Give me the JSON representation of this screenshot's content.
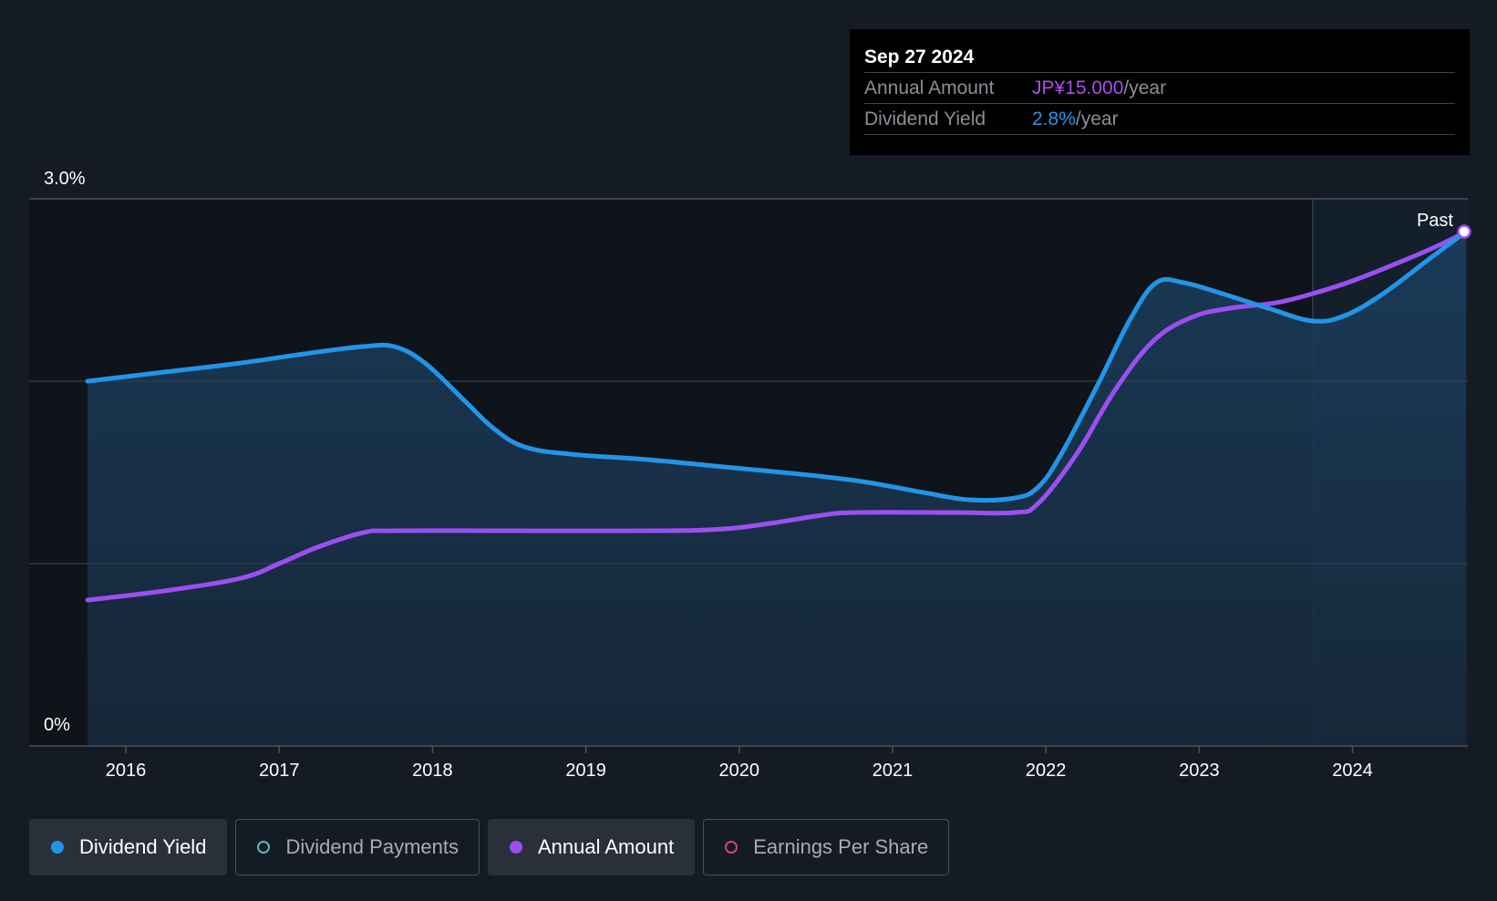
{
  "chart_data": {
    "type": "line",
    "y_axis": {
      "top_label": "3.0%",
      "bottom_label": "0%",
      "ylim": [
        0,
        3.0
      ]
    },
    "x_ticks": [
      "2016",
      "2017",
      "2018",
      "2019",
      "2020",
      "2021",
      "2022",
      "2023",
      "2024"
    ],
    "xlim": [
      2015.75,
      2024.74
    ],
    "forecast_label": "Past",
    "forecast_start": 2023.74,
    "series": [
      {
        "name": "Dividend Yield",
        "color": "#2394e6",
        "unit": "%",
        "points": [
          [
            2015.75,
            2.0
          ],
          [
            2016.25,
            2.05
          ],
          [
            2016.75,
            2.1
          ],
          [
            2017.25,
            2.16
          ],
          [
            2017.55,
            2.19
          ],
          [
            2017.75,
            2.19
          ],
          [
            2017.95,
            2.1
          ],
          [
            2018.2,
            1.9
          ],
          [
            2018.4,
            1.74
          ],
          [
            2018.6,
            1.64
          ],
          [
            2018.9,
            1.6
          ],
          [
            2019.4,
            1.57
          ],
          [
            2019.9,
            1.53
          ],
          [
            2020.4,
            1.49
          ],
          [
            2020.8,
            1.45
          ],
          [
            2021.2,
            1.39
          ],
          [
            2021.5,
            1.35
          ],
          [
            2021.8,
            1.36
          ],
          [
            2021.95,
            1.42
          ],
          [
            2022.1,
            1.6
          ],
          [
            2022.35,
            2.0
          ],
          [
            2022.55,
            2.34
          ],
          [
            2022.72,
            2.54
          ],
          [
            2022.9,
            2.54
          ],
          [
            2023.15,
            2.48
          ],
          [
            2023.45,
            2.4
          ],
          [
            2023.74,
            2.33
          ],
          [
            2023.95,
            2.36
          ],
          [
            2024.2,
            2.48
          ],
          [
            2024.5,
            2.67
          ],
          [
            2024.74,
            2.82
          ]
        ]
      },
      {
        "name": "Annual Amount",
        "color": "#9c4ff0",
        "unit": "JP¥",
        "points": [
          [
            2015.75,
            0.8
          ],
          [
            2016.25,
            0.85
          ],
          [
            2016.75,
            0.92
          ],
          [
            2017.0,
            1.0
          ],
          [
            2017.25,
            1.09
          ],
          [
            2017.55,
            1.17
          ],
          [
            2017.75,
            1.18
          ],
          [
            2018.5,
            1.18
          ],
          [
            2019.5,
            1.18
          ],
          [
            2019.9,
            1.19
          ],
          [
            2020.2,
            1.22
          ],
          [
            2020.5,
            1.26
          ],
          [
            2020.75,
            1.28
          ],
          [
            2021.4,
            1.28
          ],
          [
            2021.8,
            1.28
          ],
          [
            2021.95,
            1.33
          ],
          [
            2022.2,
            1.6
          ],
          [
            2022.45,
            1.95
          ],
          [
            2022.7,
            2.22
          ],
          [
            2022.95,
            2.35
          ],
          [
            2023.2,
            2.4
          ],
          [
            2023.5,
            2.43
          ],
          [
            2023.74,
            2.48
          ],
          [
            2024.0,
            2.55
          ],
          [
            2024.3,
            2.65
          ],
          [
            2024.55,
            2.74
          ],
          [
            2024.74,
            2.82
          ]
        ]
      }
    ],
    "tooltip": {
      "date": "Sep 27 2024",
      "rows": [
        {
          "label": "Annual Amount",
          "value": "JP¥15.000",
          "suffix": "/year",
          "color": "#a94ef0"
        },
        {
          "label": "Dividend Yield",
          "value": "2.8%",
          "suffix": "/year",
          "color": "#2394e6"
        }
      ]
    },
    "legend": [
      {
        "label": "Dividend Yield",
        "color": "#2394e6",
        "active": true,
        "filled": true
      },
      {
        "label": "Dividend Payments",
        "color": "#4fc1b8",
        "active": false,
        "filled": false
      },
      {
        "label": "Annual Amount",
        "color": "#9c4ff0",
        "active": true,
        "filled": true
      },
      {
        "label": "Earnings Per Share",
        "color": "#c9467e",
        "active": false,
        "filled": false
      }
    ]
  }
}
